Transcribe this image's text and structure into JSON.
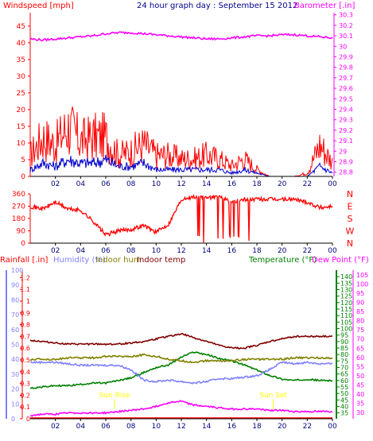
{
  "chart_data": [
    {
      "type": "line",
      "title": "24 hour graph day : September 15 2012",
      "y_left_label": "Windspeed [mph]",
      "y_right_label": "Barometer [.in]",
      "x_ticks": [
        "02",
        "04",
        "06",
        "08",
        "10",
        "12",
        "14",
        "16",
        "18",
        "20",
        "22",
        "00"
      ],
      "y_left_ticks": [
        0,
        5,
        10,
        15,
        20,
        25,
        30,
        35,
        40,
        45
      ],
      "y_left_range": [
        0,
        49
      ],
      "y_right_ticks": [
        "28.8",
        "28.9",
        "29",
        "29.1",
        "29.2",
        "29.3",
        "29.4",
        "29.5",
        "29.6",
        "29.7",
        "29.8",
        "29.9",
        "30",
        "30.1",
        "30.2",
        "30.3"
      ],
      "y_right_range": [
        28.76,
        30.32
      ],
      "grid": false,
      "colors": {
        "gust": "#ff0000",
        "average": "#0000cc",
        "barometer": "#ff00ff"
      },
      "series": [
        {
          "key": "gust",
          "hours": [
            0,
            1,
            2,
            3,
            4,
            5,
            6,
            7,
            8,
            9,
            10,
            11,
            12,
            13,
            14,
            15,
            16,
            17,
            18,
            19,
            20,
            21,
            22,
            23,
            24
          ],
          "values": [
            6,
            11,
            9,
            14,
            10,
            11,
            11,
            6,
            7,
            9,
            6,
            6,
            5,
            5,
            6,
            5,
            3,
            5,
            2,
            0,
            0,
            0,
            1,
            9,
            4
          ]
        },
        {
          "key": "average",
          "hours": [
            0,
            1,
            2,
            3,
            4,
            5,
            6,
            7,
            8,
            9,
            10,
            11,
            12,
            13,
            14,
            15,
            16,
            17,
            18,
            19,
            20,
            21,
            22,
            23,
            24
          ],
          "values": [
            2,
            4,
            3,
            5,
            4,
            4,
            5,
            3,
            3,
            4,
            2,
            2,
            2,
            2,
            2,
            2,
            1,
            2,
            1,
            0,
            0,
            0,
            0,
            3,
            1
          ]
        },
        {
          "key": "barometer",
          "hours": [
            0,
            1,
            2,
            3,
            4,
            5,
            6,
            7,
            8,
            9,
            10,
            11,
            12,
            13,
            14,
            15,
            16,
            17,
            18,
            19,
            20,
            21,
            22,
            23,
            24
          ],
          "values": [
            30.07,
            30.06,
            30.07,
            30.08,
            30.09,
            30.1,
            30.12,
            30.13,
            30.13,
            30.12,
            30.11,
            30.1,
            30.09,
            30.08,
            30.07,
            30.07,
            30.08,
            30.09,
            30.1,
            30.1,
            30.11,
            30.11,
            30.1,
            30.09,
            30.08
          ]
        }
      ]
    },
    {
      "type": "scatter",
      "y_left_ticks": [
        0,
        90,
        180,
        270,
        360
      ],
      "y_left_range": [
        0,
        360
      ],
      "y_right_labels": [
        "N",
        "W",
        "S",
        "E",
        "N"
      ],
      "x_ticks": [
        "02",
        "04",
        "06",
        "08",
        "10",
        "12",
        "14",
        "16",
        "18",
        "20",
        "22",
        "00"
      ],
      "colors": {
        "direction": "#ff0000"
      },
      "series": [
        {
          "key": "direction",
          "hours": [
            0,
            1,
            2,
            3,
            4,
            5,
            6,
            7,
            8,
            9,
            10,
            11,
            12,
            13,
            14,
            15,
            16,
            17,
            18,
            19,
            20,
            21,
            22,
            23,
            24
          ],
          "values": [
            270,
            250,
            300,
            250,
            240,
            160,
            60,
            90,
            100,
            130,
            80,
            140,
            320,
            340,
            330,
            340,
            300,
            320,
            320,
            320,
            320,
            320,
            300,
            260,
            270
          ]
        }
      ]
    },
    {
      "type": "line",
      "legend": [
        "Rainfall [.in]",
        "Humidity (%)",
        "Indoor hum",
        "Indoor temp",
        "Temperature (°F)",
        "Dew Point (°F)"
      ],
      "legend_colors": [
        "#ff0000",
        "#8080ff",
        "#808000",
        "#800000",
        "#008000",
        "#ff00ff"
      ],
      "y_rain_ticks": [
        "0",
        "0.1",
        "0.2",
        "0.3",
        "0.4",
        "0.5",
        "0.6",
        "0.7",
        "0.8",
        "0.9",
        "1",
        "1.1",
        "1.2"
      ],
      "y_hum_ticks": [
        0,
        10,
        20,
        30,
        40,
        50,
        60,
        70,
        80,
        90,
        100
      ],
      "y_temp_ticks": [
        35,
        40,
        45,
        50,
        55,
        60,
        65,
        70,
        75,
        80,
        85,
        90,
        95,
        100,
        105,
        110,
        115,
        120,
        125,
        130,
        135,
        140
      ],
      "y_dew_ticks": [
        30,
        35,
        40,
        45,
        50,
        55,
        60,
        65,
        70,
        75,
        80,
        85,
        90,
        95,
        100,
        105
      ],
      "y_hum_range": [
        0,
        100
      ],
      "y_temp_range": [
        30.5,
        145
      ],
      "annotations": [
        {
          "text": "Sun Rise",
          "hour": 6.7
        },
        {
          "text": "Sun Set",
          "hour": 19.3
        }
      ],
      "x_ticks": [
        "02",
        "04",
        "06",
        "08",
        "10",
        "12",
        "14",
        "16",
        "18",
        "20",
        "22",
        "00"
      ],
      "series": [
        {
          "key": "indoor_temp",
          "hours": [
            0,
            1,
            2,
            3,
            4,
            5,
            6,
            7,
            8,
            9,
            10,
            11,
            12,
            13,
            14,
            15,
            16,
            17,
            18,
            19,
            20,
            21,
            22,
            23,
            24
          ],
          "values": [
            91,
            90,
            89,
            88,
            88,
            88,
            88,
            88,
            89,
            90,
            92,
            94,
            96,
            93,
            90,
            87,
            85,
            85,
            87,
            90,
            92,
            94,
            94,
            94,
            94
          ]
        },
        {
          "key": "temperature",
          "hours": [
            0,
            1,
            2,
            3,
            4,
            5,
            6,
            7,
            8,
            9,
            10,
            11,
            12,
            13,
            14,
            15,
            16,
            17,
            18,
            19,
            20,
            21,
            22,
            23,
            24
          ],
          "values": [
            54,
            55,
            56,
            56,
            57,
            58,
            58,
            60,
            62,
            66,
            70,
            72,
            78,
            82,
            80,
            77,
            75,
            72,
            68,
            64,
            61,
            60,
            61,
            60,
            60
          ]
        },
        {
          "key": "humidity",
          "hours": [
            0,
            1,
            2,
            3,
            4,
            5,
            6,
            7,
            8,
            9,
            10,
            11,
            12,
            13,
            14,
            15,
            16,
            17,
            18,
            19,
            20,
            21,
            22,
            23,
            24
          ],
          "values": [
            38,
            38,
            38,
            37,
            36,
            36,
            36,
            36,
            33,
            26,
            25,
            26,
            25,
            24,
            25,
            27,
            27,
            28,
            29,
            33,
            38,
            37,
            38,
            37,
            37
          ]
        },
        {
          "key": "indoor_hum",
          "hours": [
            0,
            1,
            2,
            3,
            4,
            5,
            6,
            7,
            8,
            9,
            10,
            11,
            12,
            13,
            14,
            15,
            16,
            17,
            18,
            19,
            20,
            21,
            22,
            23,
            24
          ],
          "values": [
            40,
            40,
            40,
            41,
            41,
            41,
            42,
            42,
            42,
            43,
            42,
            40,
            39,
            38,
            39,
            39,
            39,
            40,
            40,
            40,
            40,
            41,
            41,
            41,
            41
          ]
        },
        {
          "key": "dew_point",
          "hours": [
            0,
            1,
            2,
            3,
            4,
            5,
            6,
            7,
            8,
            9,
            10,
            11,
            12,
            13,
            14,
            15,
            16,
            17,
            18,
            19,
            20,
            21,
            22,
            23,
            24
          ],
          "values": [
            33,
            34,
            34,
            35,
            35,
            35,
            35,
            36,
            37,
            38,
            40,
            43,
            44,
            41,
            40,
            39,
            38,
            38,
            38,
            37,
            37,
            36,
            36,
            36,
            36
          ]
        }
      ]
    }
  ]
}
